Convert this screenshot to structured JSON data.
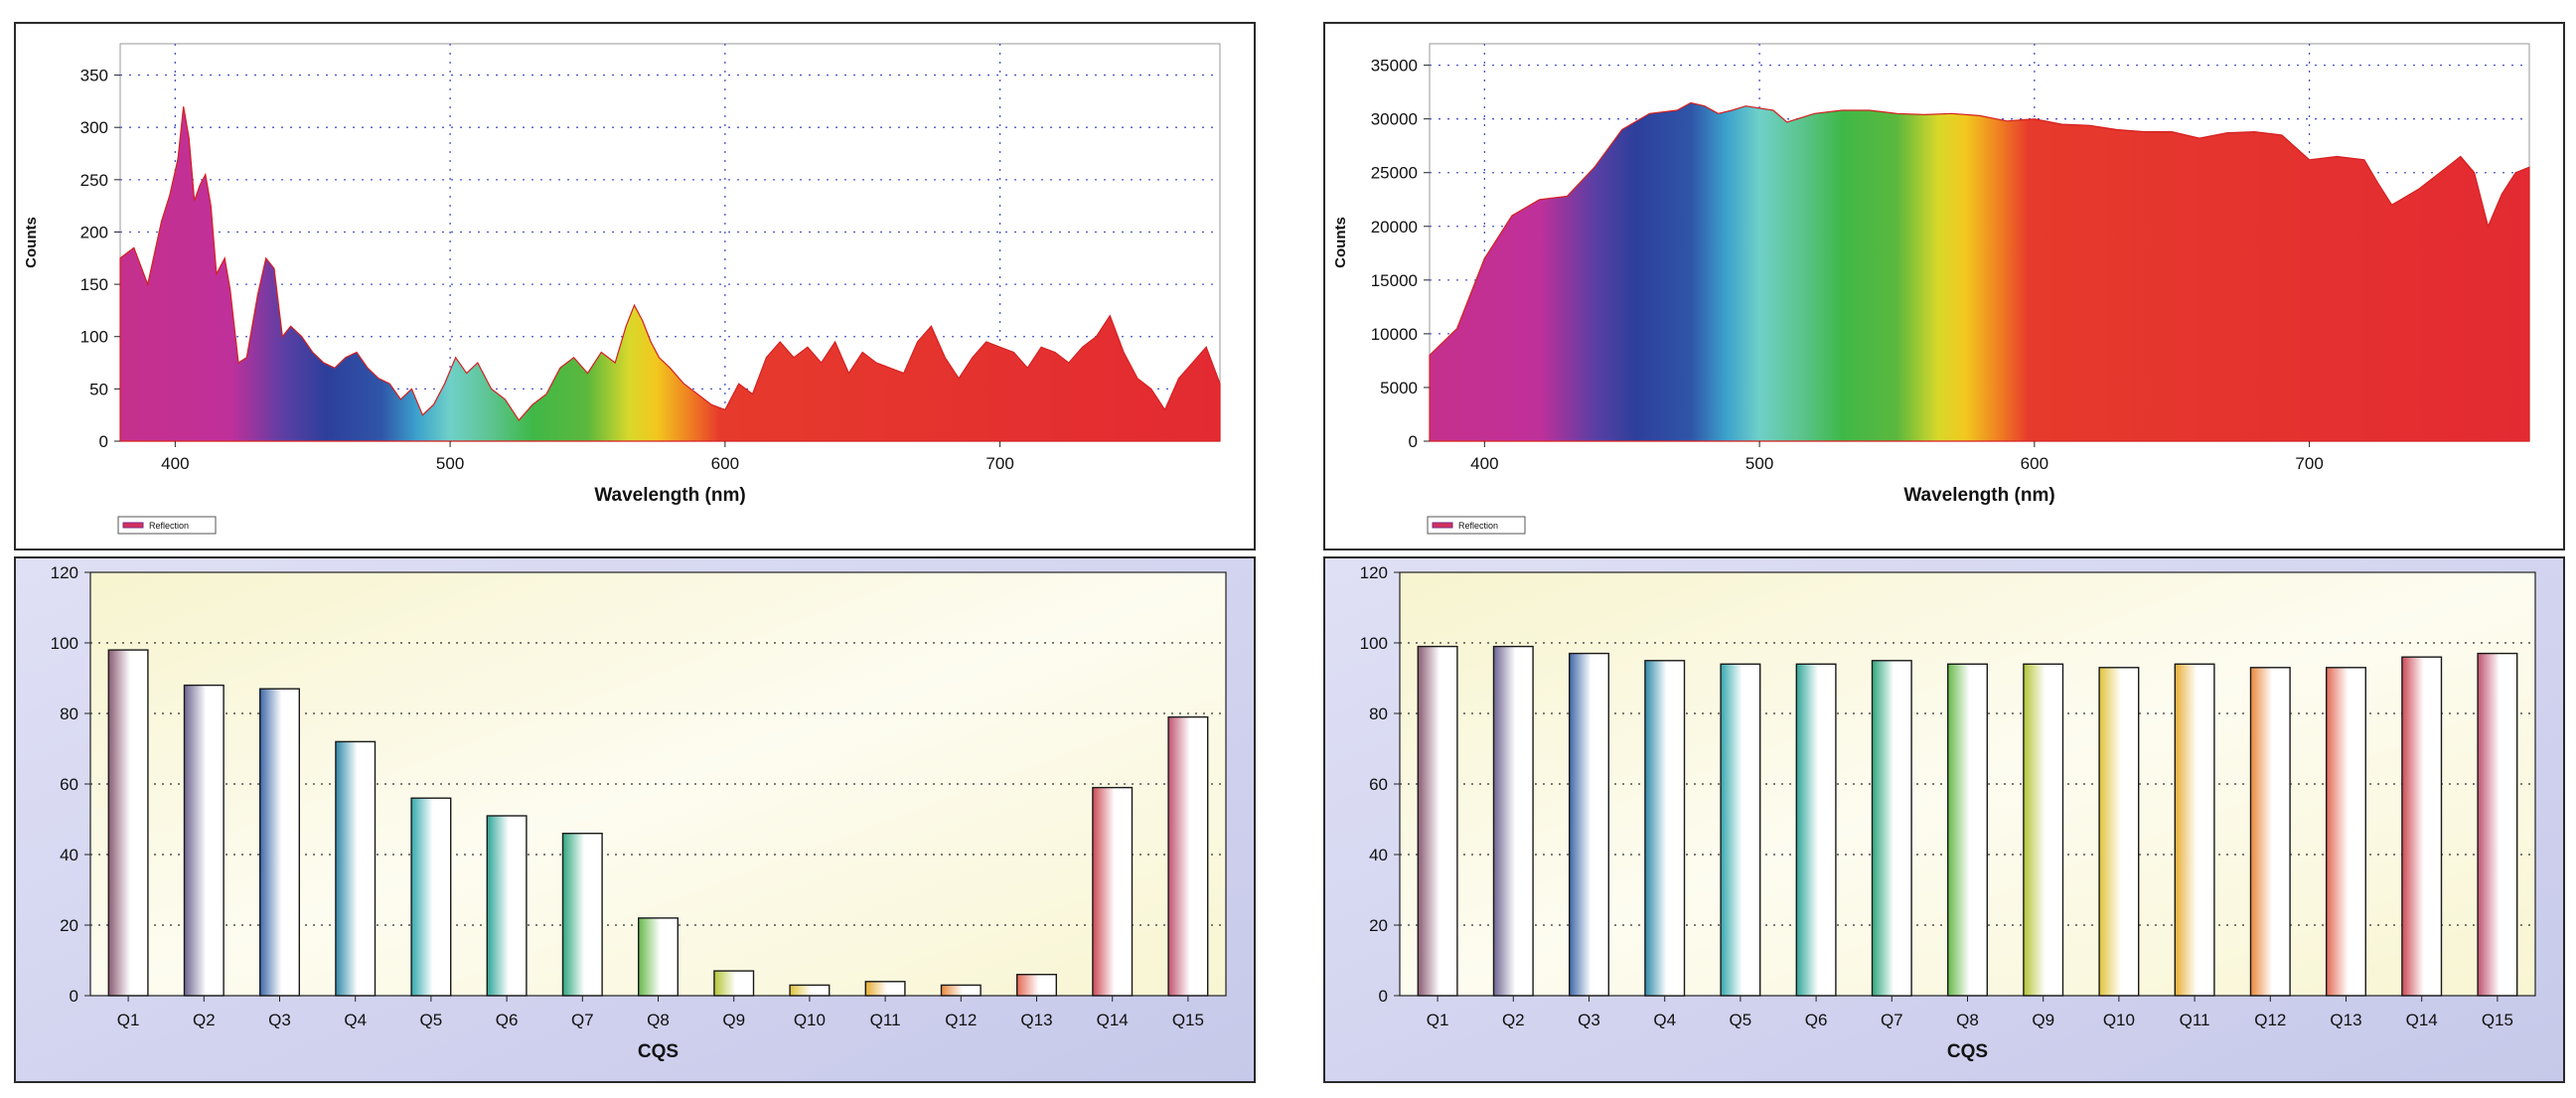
{
  "chart_data": [
    {
      "type": "area",
      "xlabel": "Wavelength (nm)",
      "ylabel": "Counts",
      "xlim": [
        380,
        780
      ],
      "ylim": [
        0,
        380
      ],
      "xticks": [
        400,
        500,
        600,
        700
      ],
      "yticks": [
        0,
        50,
        100,
        150,
        200,
        250,
        300,
        350
      ],
      "grid": true,
      "legend": {
        "label": "Reflection",
        "placement": "bottom-left"
      },
      "series": [
        {
          "x": [
            380,
            385,
            390,
            395,
            398,
            401,
            403,
            405,
            407,
            409,
            411,
            413,
            415,
            418,
            420,
            423,
            426,
            430,
            433,
            436,
            439,
            442,
            446,
            450,
            454,
            458,
            462,
            466,
            470,
            474,
            478,
            482,
            486,
            490,
            494,
            498,
            502,
            506,
            510,
            515,
            520,
            525,
            530,
            535,
            540,
            545,
            550,
            555,
            560,
            564,
            567,
            570,
            573,
            576,
            580,
            585,
            590,
            595,
            600,
            605,
            610,
            615,
            620,
            625,
            630,
            635,
            640,
            645,
            650,
            655,
            660,
            665,
            670,
            675,
            680,
            685,
            690,
            695,
            700,
            705,
            710,
            715,
            720,
            725,
            730,
            735,
            740,
            745,
            750,
            755,
            760,
            765,
            770,
            775,
            780
          ],
          "y": [
            175,
            185,
            150,
            210,
            235,
            270,
            320,
            290,
            230,
            245,
            255,
            225,
            160,
            175,
            145,
            75,
            80,
            140,
            175,
            165,
            100,
            110,
            100,
            85,
            75,
            70,
            80,
            85,
            70,
            60,
            55,
            40,
            50,
            25,
            35,
            55,
            80,
            65,
            75,
            50,
            40,
            20,
            35,
            45,
            70,
            80,
            65,
            85,
            75,
            110,
            130,
            115,
            95,
            80,
            70,
            55,
            45,
            35,
            30,
            55,
            45,
            80,
            95,
            80,
            90,
            75,
            95,
            65,
            85,
            75,
            70,
            65,
            95,
            110,
            80,
            60,
            80,
            95,
            90,
            85,
            70,
            90,
            85,
            75,
            90,
            100,
            120,
            85,
            60,
            50,
            30,
            60,
            75,
            90,
            55
          ]
        }
      ]
    },
    {
      "type": "area",
      "xlabel": "Wavelength (nm)",
      "ylabel": "Counts",
      "xlim": [
        380,
        780
      ],
      "ylim": [
        0,
        37000
      ],
      "xticks": [
        400,
        500,
        600,
        700
      ],
      "yticks": [
        0,
        5000,
        10000,
        15000,
        20000,
        25000,
        30000,
        35000
      ],
      "grid": true,
      "legend": {
        "label": "Reflection",
        "placement": "bottom-left"
      },
      "series": [
        {
          "x": [
            380,
            390,
            400,
            410,
            420,
            430,
            440,
            450,
            460,
            470,
            475,
            480,
            485,
            490,
            495,
            500,
            505,
            510,
            520,
            530,
            540,
            550,
            560,
            570,
            580,
            590,
            600,
            610,
            620,
            630,
            640,
            650,
            660,
            670,
            680,
            690,
            700,
            710,
            720,
            725,
            730,
            740,
            750,
            755,
            760,
            765,
            770,
            775,
            780
          ],
          "y": [
            8000,
            10500,
            17000,
            21000,
            22500,
            22800,
            25500,
            29000,
            30500,
            30800,
            31500,
            31200,
            30500,
            30800,
            31200,
            31000,
            30800,
            29700,
            30500,
            30800,
            30800,
            30500,
            30400,
            30500,
            30300,
            29800,
            30000,
            29500,
            29400,
            29000,
            28800,
            28800,
            28200,
            28700,
            28800,
            28500,
            26200,
            26500,
            26200,
            24000,
            22000,
            23500,
            25500,
            26500,
            25000,
            20000,
            23000,
            25000,
            25500
          ]
        }
      ]
    },
    {
      "type": "bar",
      "xlabel": "CQS",
      "ylabel": "",
      "ylim": [
        0,
        120
      ],
      "yticks": [
        0,
        20,
        40,
        60,
        80,
        100,
        120
      ],
      "grid": true,
      "categories": [
        "Q1",
        "Q2",
        "Q3",
        "Q4",
        "Q5",
        "Q6",
        "Q7",
        "Q8",
        "Q9",
        "Q10",
        "Q11",
        "Q12",
        "Q13",
        "Q14",
        "Q15"
      ],
      "values": [
        98,
        88,
        87,
        72,
        56,
        51,
        46,
        22,
        7,
        3,
        4,
        3,
        6,
        59,
        79
      ],
      "colors": [
        "#8a5b73",
        "#6e6591",
        "#3d68a8",
        "#2f89a8",
        "#35a8ad",
        "#2fa598",
        "#2fa77e",
        "#66b84a",
        "#b4c436",
        "#e0c23a",
        "#e7ad33",
        "#e9873a",
        "#e36a55",
        "#cc4a55",
        "#c05370"
      ]
    },
    {
      "type": "bar",
      "xlabel": "CQS",
      "ylabel": "",
      "ylim": [
        0,
        120
      ],
      "yticks": [
        0,
        20,
        40,
        60,
        80,
        100,
        120
      ],
      "grid": true,
      "categories": [
        "Q1",
        "Q2",
        "Q3",
        "Q4",
        "Q5",
        "Q6",
        "Q7",
        "Q8",
        "Q9",
        "Q10",
        "Q11",
        "Q12",
        "Q13",
        "Q14",
        "Q15"
      ],
      "values": [
        99,
        99,
        97,
        95,
        94,
        94,
        95,
        94,
        94,
        93,
        94,
        93,
        93,
        96,
        97
      ],
      "colors": [
        "#8a5b73",
        "#6e6591",
        "#3d68a8",
        "#2f89a8",
        "#35a8ad",
        "#2fa598",
        "#2fa77e",
        "#66b84a",
        "#b4c436",
        "#e0c23a",
        "#e7ad33",
        "#e9873a",
        "#e36a55",
        "#cc4a55",
        "#c05370"
      ]
    }
  ]
}
